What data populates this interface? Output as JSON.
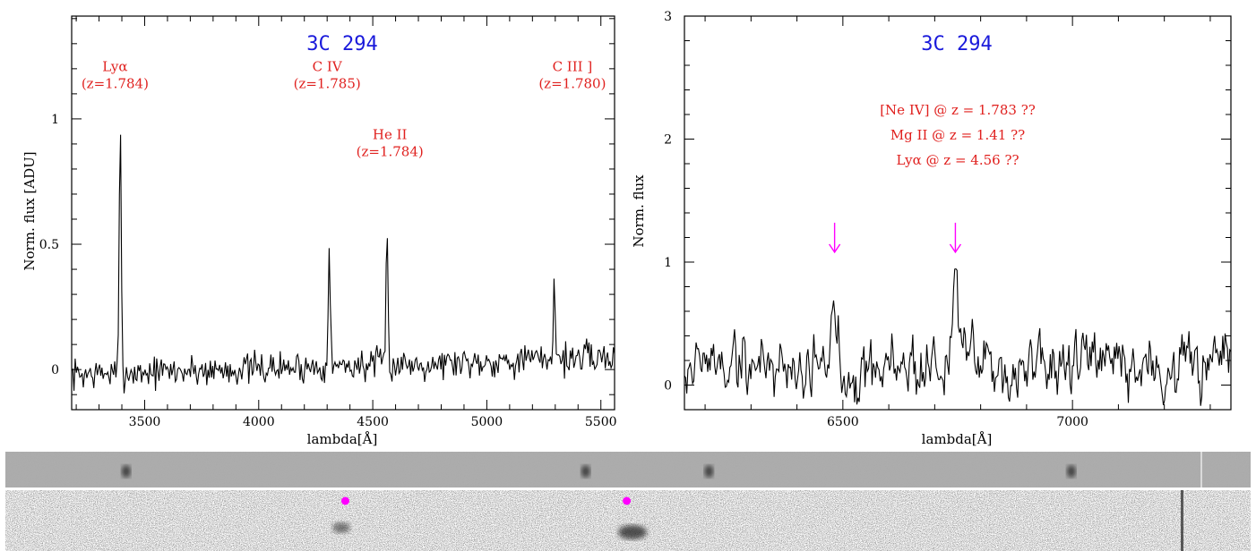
{
  "chart_data": [
    {
      "type": "line",
      "title": "3C 294",
      "xlabel": "lambda[Å]",
      "ylabel": "Norm. flux [ADU]",
      "xlim": [
        3180,
        5560
      ],
      "ylim": [
        -0.16,
        1.41
      ],
      "xticks": [
        3500,
        4000,
        4500,
        5000,
        5500
      ],
      "yticks": [
        0,
        0.5,
        1
      ],
      "xtick_labels": [
        "3500",
        "4000",
        "4500",
        "5000",
        "5500"
      ],
      "ytick_labels": [
        "0",
        "0.5",
        "1"
      ],
      "colors": {
        "title": "#1a1adb",
        "annotation": "#e0201e",
        "line": "#000000"
      },
      "series": [
        {
          "noise_sigma": 0.04,
          "noise_seed": 7,
          "baseline_start": -0.02,
          "baseline_end": 0.05,
          "peaks": [
            {
              "x": 3393,
              "y": 1.0
            },
            {
              "x": 4309,
              "y": 0.56
            },
            {
              "x": 4562,
              "y": 0.55
            },
            {
              "x": 5296,
              "y": 0.36
            }
          ]
        }
      ],
      "annotations": [
        {
          "lines": [
            "Lyα",
            "(z=1.784)"
          ],
          "x": 3370,
          "y": 1.19
        },
        {
          "lines": [
            "C IV",
            "(z=1.785)"
          ],
          "x": 4300,
          "y": 1.19
        },
        {
          "lines": [
            "He II",
            "(z=1.784)"
          ],
          "x": 4575,
          "y": 0.92
        },
        {
          "lines": [
            "C III ]",
            "(z=1.780)"
          ],
          "x": 5375,
          "y": 1.19
        }
      ]
    },
    {
      "type": "line",
      "title": "3C 294",
      "xlabel": "lambda[Å]",
      "ylabel": "Norm. flux",
      "xlim": [
        6155,
        7345
      ],
      "ylim": [
        -0.2,
        3.0
      ],
      "xticks": [
        6500,
        7000
      ],
      "yticks": [
        0,
        1,
        2,
        3
      ],
      "xtick_labels": [
        "6500",
        "7000"
      ],
      "ytick_labels": [
        "0",
        "1",
        "2",
        "3"
      ],
      "colors": {
        "title": "#1a1adb",
        "annotation": "#e0201e",
        "arrow": "#ff00ff",
        "line": "#000000"
      },
      "series": [
        {
          "noise_sigma": 0.17,
          "noise_seed": 19,
          "baseline_start": 0.18,
          "baseline_end": 0.12,
          "peaks": [
            {
              "x": 6482,
              "y": 0.55
            },
            {
              "x": 6745,
              "y": 1.0
            }
          ]
        }
      ],
      "annotations": [
        {
          "lines": [
            "[Ne IV] @ z = 1.783 ??",
            "Mg II @ z = 1.41 ??",
            "Lyα @ z = 4.56 ??"
          ],
          "x": 6750,
          "y": 2.2
        }
      ],
      "arrows": [
        {
          "x": 6482,
          "y_top": 1.32,
          "y_bottom": 1.08
        },
        {
          "x": 6745,
          "y_top": 1.32,
          "y_bottom": 1.08
        }
      ]
    }
  ],
  "image_strips": {
    "colors": {
      "marker": "#ff00ff"
    },
    "upper_sources_fraction": [
      0.097,
      0.466,
      0.565,
      0.856
    ],
    "markers_fraction": [
      0.273,
      0.499
    ]
  }
}
